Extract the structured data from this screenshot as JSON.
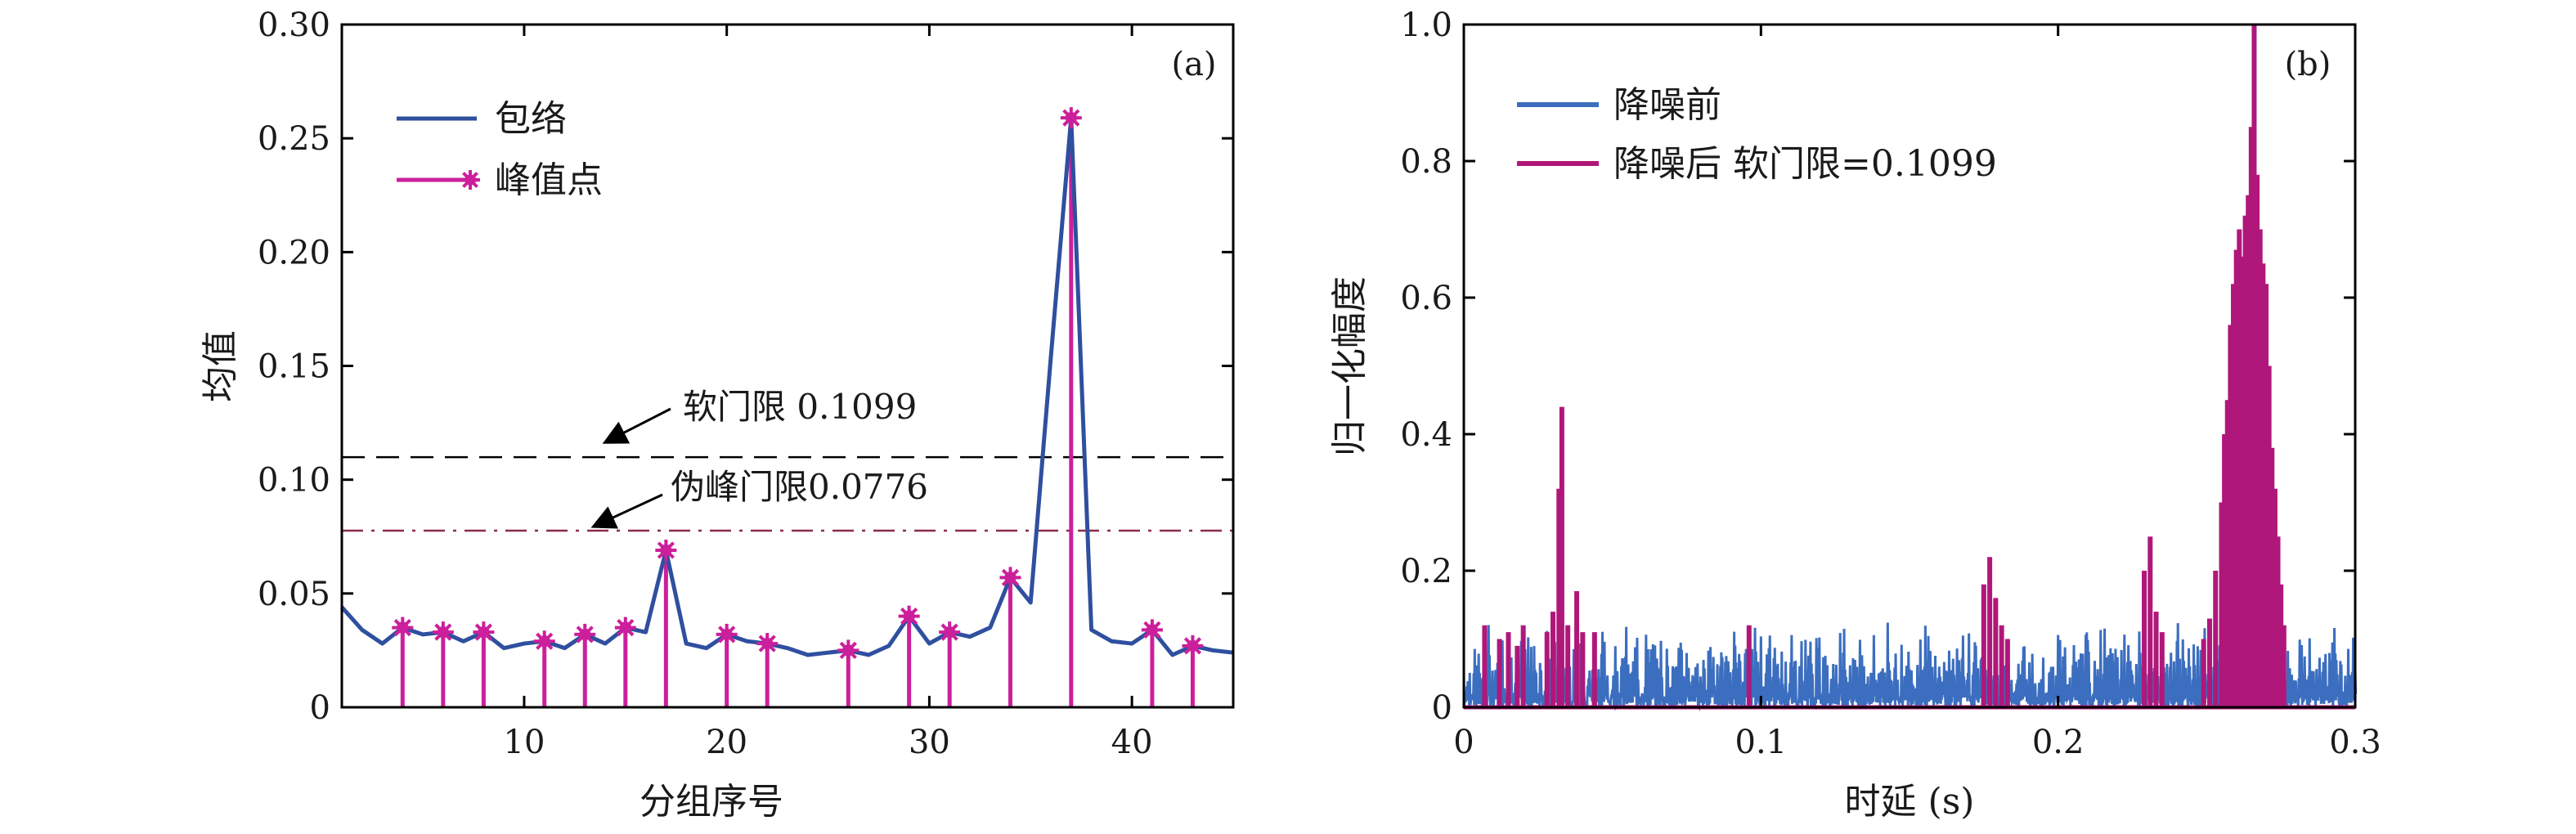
{
  "colors": {
    "envelope": "#2f4f9f",
    "peak": "#cc1f9c",
    "before": "#3c6ebf",
    "after": "#b0177a",
    "soft": "#000000",
    "pseudo": "#8b2b4a"
  },
  "chart_data": [
    {
      "type": "line",
      "panel_label": "(a)",
      "xlabel": "分组序号",
      "ylabel": "均值",
      "xlim": [
        1,
        45
      ],
      "ylim": [
        0,
        0.3
      ],
      "xticks": [
        10,
        20,
        30,
        40
      ],
      "xtick_labels": [
        "10",
        "20",
        "30",
        "40"
      ],
      "yticks": [
        0,
        0.05,
        0.1,
        0.15,
        0.2,
        0.25,
        0.3
      ],
      "ytick_labels": [
        "0",
        "0.05",
        "0.10",
        "0.15",
        "0.20",
        "0.25",
        "0.30"
      ],
      "legend": {
        "position": "top-left",
        "entries": [
          "包络",
          "峰值点"
        ]
      },
      "series": [
        {
          "name": "包络",
          "x": [
            1,
            2,
            3,
            4,
            5,
            6,
            7,
            8,
            9,
            10,
            11,
            12,
            13,
            14,
            15,
            16,
            17,
            18,
            19,
            20,
            21,
            22,
            23,
            24,
            25,
            26,
            27,
            28,
            29,
            30,
            31,
            32,
            33,
            34,
            35,
            36,
            37,
            38,
            39,
            40,
            41,
            42,
            43,
            44,
            45
          ],
          "y": [
            0.044,
            0.034,
            0.028,
            0.035,
            0.032,
            0.033,
            0.029,
            0.033,
            0.026,
            0.028,
            0.029,
            0.026,
            0.032,
            0.028,
            0.035,
            0.033,
            0.069,
            0.028,
            0.026,
            0.032,
            0.029,
            0.028,
            0.026,
            0.023,
            0.024,
            0.025,
            0.023,
            0.027,
            0.04,
            0.028,
            0.033,
            0.031,
            0.035,
            0.057,
            0.046,
            0.154,
            0.259,
            0.034,
            0.029,
            0.028,
            0.034,
            0.023,
            0.027,
            0.025,
            0.024
          ]
        },
        {
          "name": "峰值点",
          "x": [
            4,
            6,
            8,
            11,
            13,
            15,
            17,
            20,
            22,
            26,
            29,
            31,
            34,
            37,
            41,
            43
          ],
          "y": [
            0.035,
            0.033,
            0.033,
            0.029,
            0.032,
            0.035,
            0.069,
            0.032,
            0.028,
            0.025,
            0.04,
            0.033,
            0.057,
            0.259,
            0.034,
            0.027
          ]
        }
      ],
      "threshold_lines": [
        {
          "label": "软门限 0.1099",
          "value": 0.1099,
          "style": "dashed"
        },
        {
          "label": "伪峰门限0.0776",
          "value": 0.0776,
          "style": "dash-dot"
        }
      ]
    },
    {
      "type": "line",
      "panel_label": "(b)",
      "xlabel": "时延 (s)",
      "ylabel": "归一化幅度",
      "xlim": [
        0,
        0.3
      ],
      "ylim": [
        0,
        1.0
      ],
      "xticks": [
        0,
        0.1,
        0.2,
        0.3
      ],
      "xtick_labels": [
        "0",
        "0.1",
        "0.2",
        "0.3"
      ],
      "yticks": [
        0,
        0.2,
        0.4,
        0.6,
        0.8,
        1.0
      ],
      "ytick_labels": [
        "0",
        "0.2",
        "0.4",
        "0.6",
        "0.8",
        "1.0"
      ],
      "legend": {
        "position": "top-left",
        "entries": [
          "降噪前",
          "降噪后 软门限=0.1099"
        ]
      },
      "series": [
        {
          "name": "降噪前",
          "description_values": "dense noise floor 0–0.13 across 0–0.3 s",
          "noise_band": [
            0,
            0.13
          ]
        },
        {
          "name": "降噪后 软门限=0.1099",
          "spikes": [
            [
              0.007,
              0.12
            ],
            [
              0.012,
              0.1
            ],
            [
              0.015,
              0.11
            ],
            [
              0.018,
              0.09
            ],
            [
              0.02,
              0.12
            ],
            [
              0.028,
              0.11
            ],
            [
              0.03,
              0.14
            ],
            [
              0.032,
              0.32
            ],
            [
              0.033,
              0.44
            ],
            [
              0.035,
              0.12
            ],
            [
              0.038,
              0.17
            ],
            [
              0.04,
              0.11
            ],
            [
              0.044,
              0.11
            ],
            [
              0.096,
              0.12
            ],
            [
              0.175,
              0.18
            ],
            [
              0.177,
              0.22
            ],
            [
              0.179,
              0.16
            ],
            [
              0.181,
              0.12
            ],
            [
              0.183,
              0.1
            ],
            [
              0.229,
              0.2
            ],
            [
              0.231,
              0.25
            ],
            [
              0.233,
              0.14
            ],
            [
              0.235,
              0.11
            ],
            [
              0.249,
              0.1
            ],
            [
              0.251,
              0.13
            ],
            [
              0.253,
              0.2
            ],
            [
              0.255,
              0.3
            ],
            [
              0.256,
              0.4
            ],
            [
              0.257,
              0.45
            ],
            [
              0.258,
              0.56
            ],
            [
              0.259,
              0.62
            ],
            [
              0.26,
              0.67
            ],
            [
              0.261,
              0.7
            ],
            [
              0.262,
              0.66
            ],
            [
              0.263,
              0.72
            ],
            [
              0.264,
              0.75
            ],
            [
              0.265,
              0.85
            ],
            [
              0.266,
              1.0
            ],
            [
              0.267,
              0.78
            ],
            [
              0.268,
              0.7
            ],
            [
              0.269,
              0.65
            ],
            [
              0.27,
              0.62
            ],
            [
              0.271,
              0.5
            ],
            [
              0.272,
              0.38
            ],
            [
              0.273,
              0.32
            ],
            [
              0.274,
              0.25
            ],
            [
              0.275,
              0.18
            ],
            [
              0.276,
              0.12
            ]
          ]
        }
      ]
    }
  ]
}
